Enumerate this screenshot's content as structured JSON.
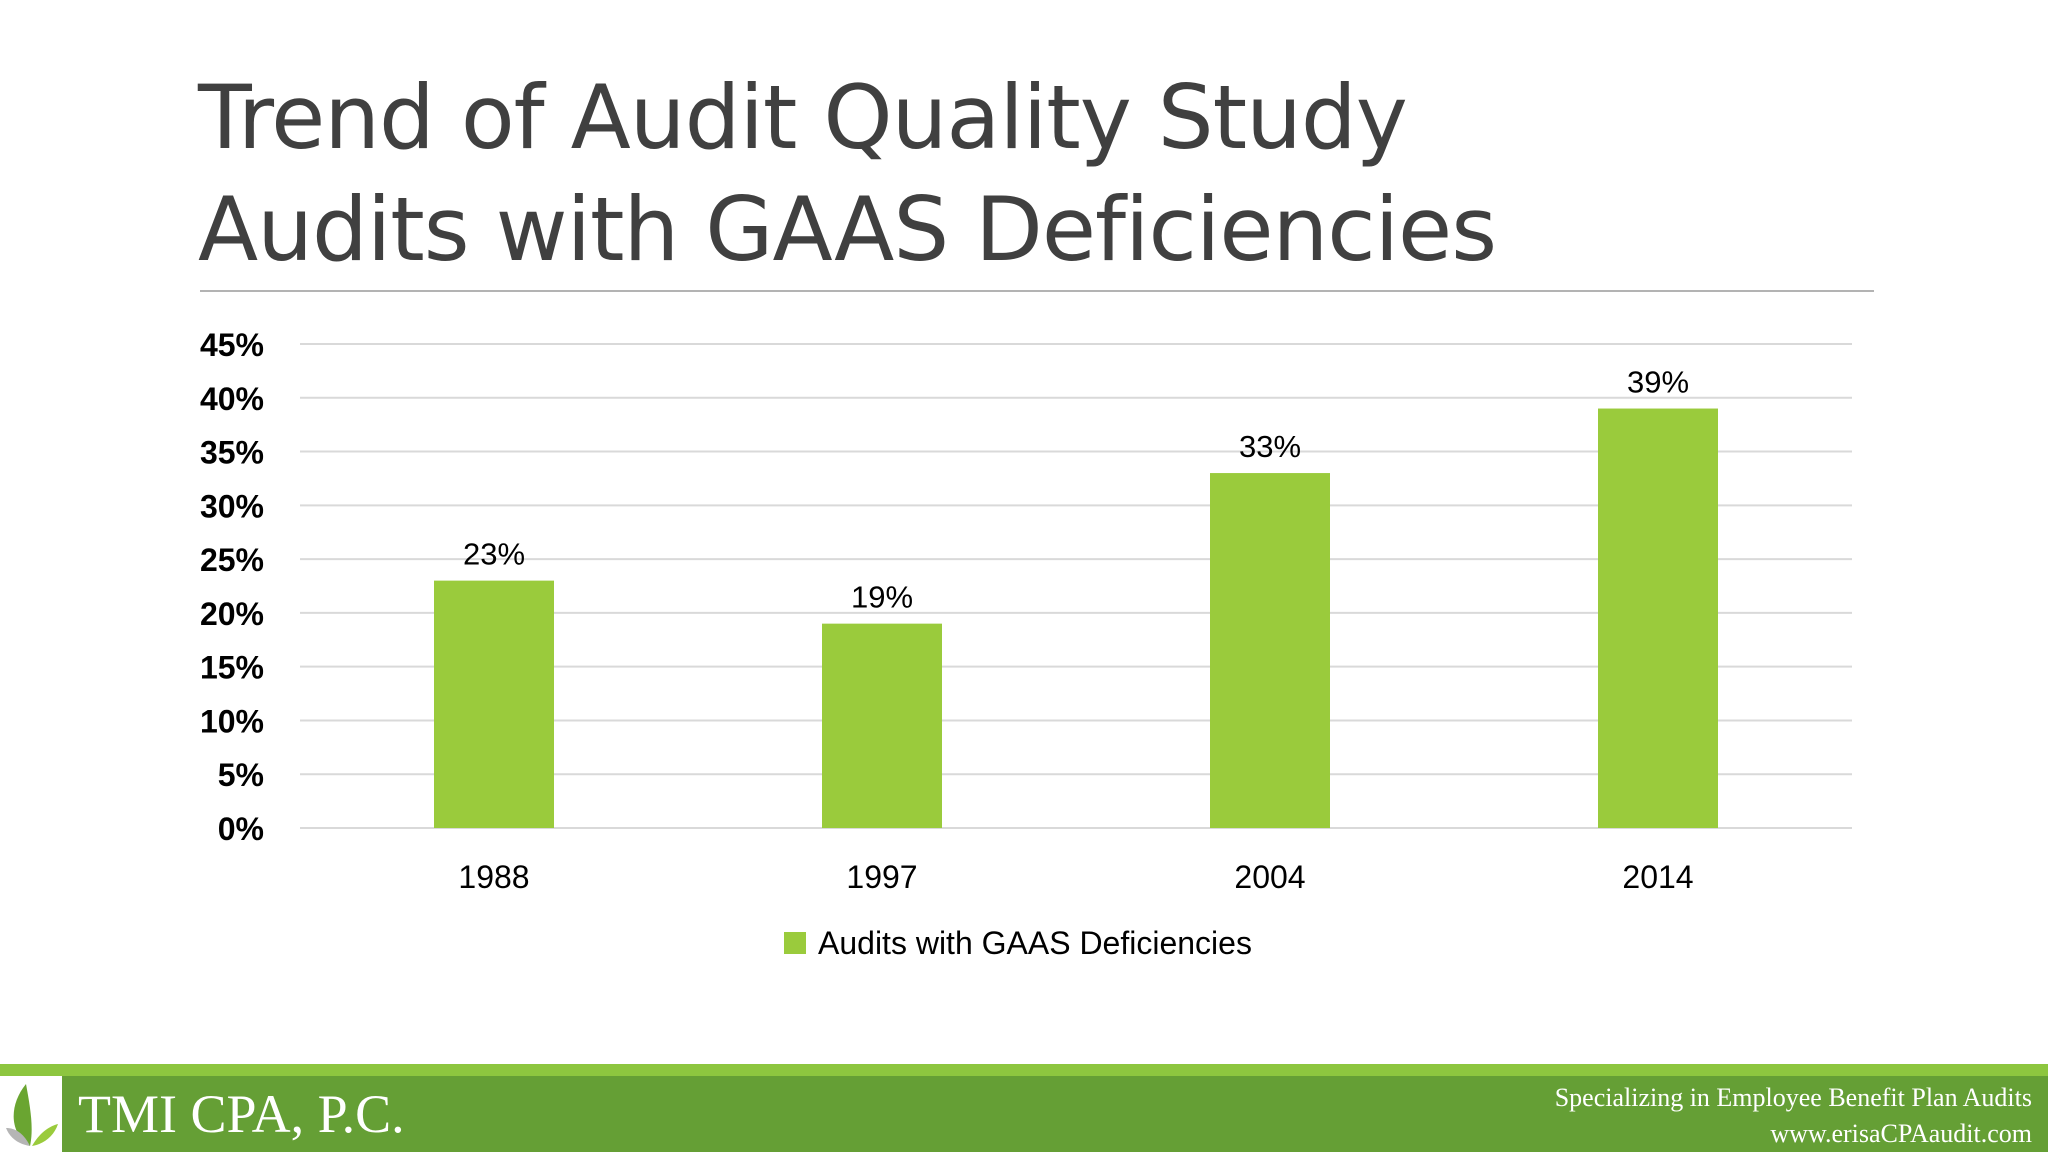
{
  "slide": {
    "title_line1": "Trend of Audit Quality Study",
    "title_line2": "Audits with GAAS Deficiencies"
  },
  "chart_data": {
    "type": "bar",
    "categories": [
      "1988",
      "1997",
      "2004",
      "2014"
    ],
    "series": [
      {
        "name": "Audits with GAAS Deficiencies",
        "values": [
          23,
          19,
          33,
          39
        ],
        "color": "#9acb3c"
      }
    ],
    "data_labels": [
      "23%",
      "19%",
      "33%",
      "39%"
    ],
    "y_ticks": [
      "0%",
      "5%",
      "10%",
      "15%",
      "20%",
      "25%",
      "30%",
      "35%",
      "40%",
      "45%"
    ],
    "ylim": [
      0,
      45
    ],
    "grid": true,
    "legend_position": "bottom"
  },
  "footer": {
    "company": "TMI CPA, P.C.",
    "tagline": "Specializing in Employee Benefit Plan Audits",
    "website": "www.erisaCPAaudit.com",
    "logo_icon": "leaf-icon"
  },
  "colors": {
    "bar": "#9acb3c",
    "footer_bar": "#659f35",
    "footer_accent": "#8dc63f",
    "title_text": "#404040"
  }
}
